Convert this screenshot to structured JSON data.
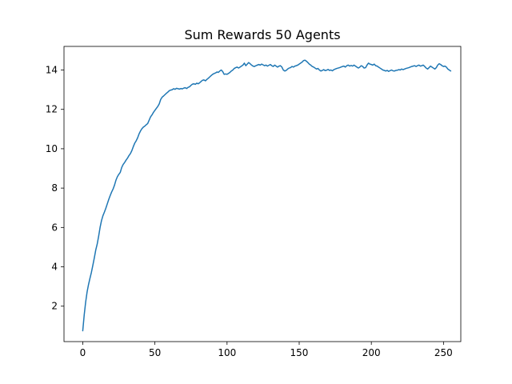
{
  "chart_data": {
    "type": "line",
    "title": "Sum Rewards 50 Agents",
    "xlabel": "",
    "ylabel": "",
    "xlim": [
      -13,
      262
    ],
    "ylim": [
      0.2,
      15.2
    ],
    "x_ticks": [
      0,
      50,
      100,
      150,
      200,
      250
    ],
    "y_ticks": [
      2,
      4,
      6,
      8,
      10,
      12,
      14
    ],
    "grid": false,
    "legend": "none",
    "series_color": "#1f77b4",
    "x_start": 0,
    "x_step": 1,
    "series": [
      {
        "values": [
          0.75,
          1.55,
          2.2,
          2.72,
          3.1,
          3.42,
          3.72,
          4.08,
          4.45,
          4.85,
          5.15,
          5.55,
          6.0,
          6.35,
          6.6,
          6.78,
          6.98,
          7.2,
          7.42,
          7.62,
          7.8,
          7.95,
          8.15,
          8.4,
          8.58,
          8.7,
          8.8,
          9.05,
          9.2,
          9.3,
          9.42,
          9.52,
          9.65,
          9.75,
          9.9,
          10.1,
          10.28,
          10.4,
          10.55,
          10.75,
          10.9,
          11.02,
          11.1,
          11.15,
          11.22,
          11.28,
          11.45,
          11.62,
          11.72,
          11.85,
          11.95,
          12.05,
          12.15,
          12.28,
          12.5,
          12.62,
          12.68,
          12.75,
          12.82,
          12.88,
          12.95,
          12.98,
          13.0,
          13.05,
          13.02,
          13.07,
          13.05,
          13.03,
          13.06,
          13.04,
          13.08,
          13.1,
          13.06,
          13.12,
          13.15,
          13.22,
          13.28,
          13.3,
          13.27,
          13.33,
          13.3,
          13.35,
          13.42,
          13.48,
          13.5,
          13.45,
          13.52,
          13.58,
          13.65,
          13.72,
          13.78,
          13.82,
          13.85,
          13.9,
          13.88,
          13.95,
          14.0,
          13.92,
          13.78,
          13.8,
          13.78,
          13.83,
          13.88,
          13.95,
          14.0,
          14.08,
          14.12,
          14.15,
          14.1,
          14.15,
          14.2,
          14.25,
          14.35,
          14.22,
          14.3,
          14.38,
          14.32,
          14.25,
          14.2,
          14.18,
          14.22,
          14.25,
          14.28,
          14.25,
          14.3,
          14.26,
          14.22,
          14.25,
          14.2,
          14.24,
          14.28,
          14.22,
          14.18,
          14.25,
          14.2,
          14.15,
          14.2,
          14.22,
          14.15,
          14.0,
          13.95,
          13.98,
          14.05,
          14.1,
          14.12,
          14.18,
          14.15,
          14.2,
          14.22,
          14.25,
          14.3,
          14.35,
          14.4,
          14.48,
          14.5,
          14.45,
          14.38,
          14.3,
          14.25,
          14.18,
          14.15,
          14.1,
          14.05,
          14.08,
          14.0,
          13.95,
          13.98,
          14.02,
          13.97,
          13.99,
          14.03,
          13.98,
          14.0,
          13.96,
          14.02,
          14.05,
          14.08,
          14.1,
          14.12,
          14.15,
          14.18,
          14.2,
          14.15,
          14.22,
          14.25,
          14.2,
          14.23,
          14.2,
          14.25,
          14.2,
          14.15,
          14.1,
          14.15,
          14.22,
          14.18,
          14.1,
          14.12,
          14.25,
          14.35,
          14.3,
          14.28,
          14.25,
          14.3,
          14.22,
          14.2,
          14.15,
          14.1,
          14.05,
          14.0,
          13.98,
          13.95,
          13.98,
          13.93,
          13.97,
          14.0,
          13.96,
          13.95,
          13.98,
          13.99,
          14.02,
          14.0,
          14.05,
          14.02,
          14.05,
          14.08,
          14.1,
          14.12,
          14.15,
          14.18,
          14.2,
          14.22,
          14.18,
          14.22,
          14.25,
          14.2,
          14.22,
          14.25,
          14.18,
          14.1,
          14.05,
          14.12,
          14.2,
          14.15,
          14.1,
          14.05,
          14.12,
          14.25,
          14.32,
          14.28,
          14.22,
          14.18,
          14.2,
          14.15,
          14.05,
          14.0,
          13.95
        ]
      }
    ]
  }
}
